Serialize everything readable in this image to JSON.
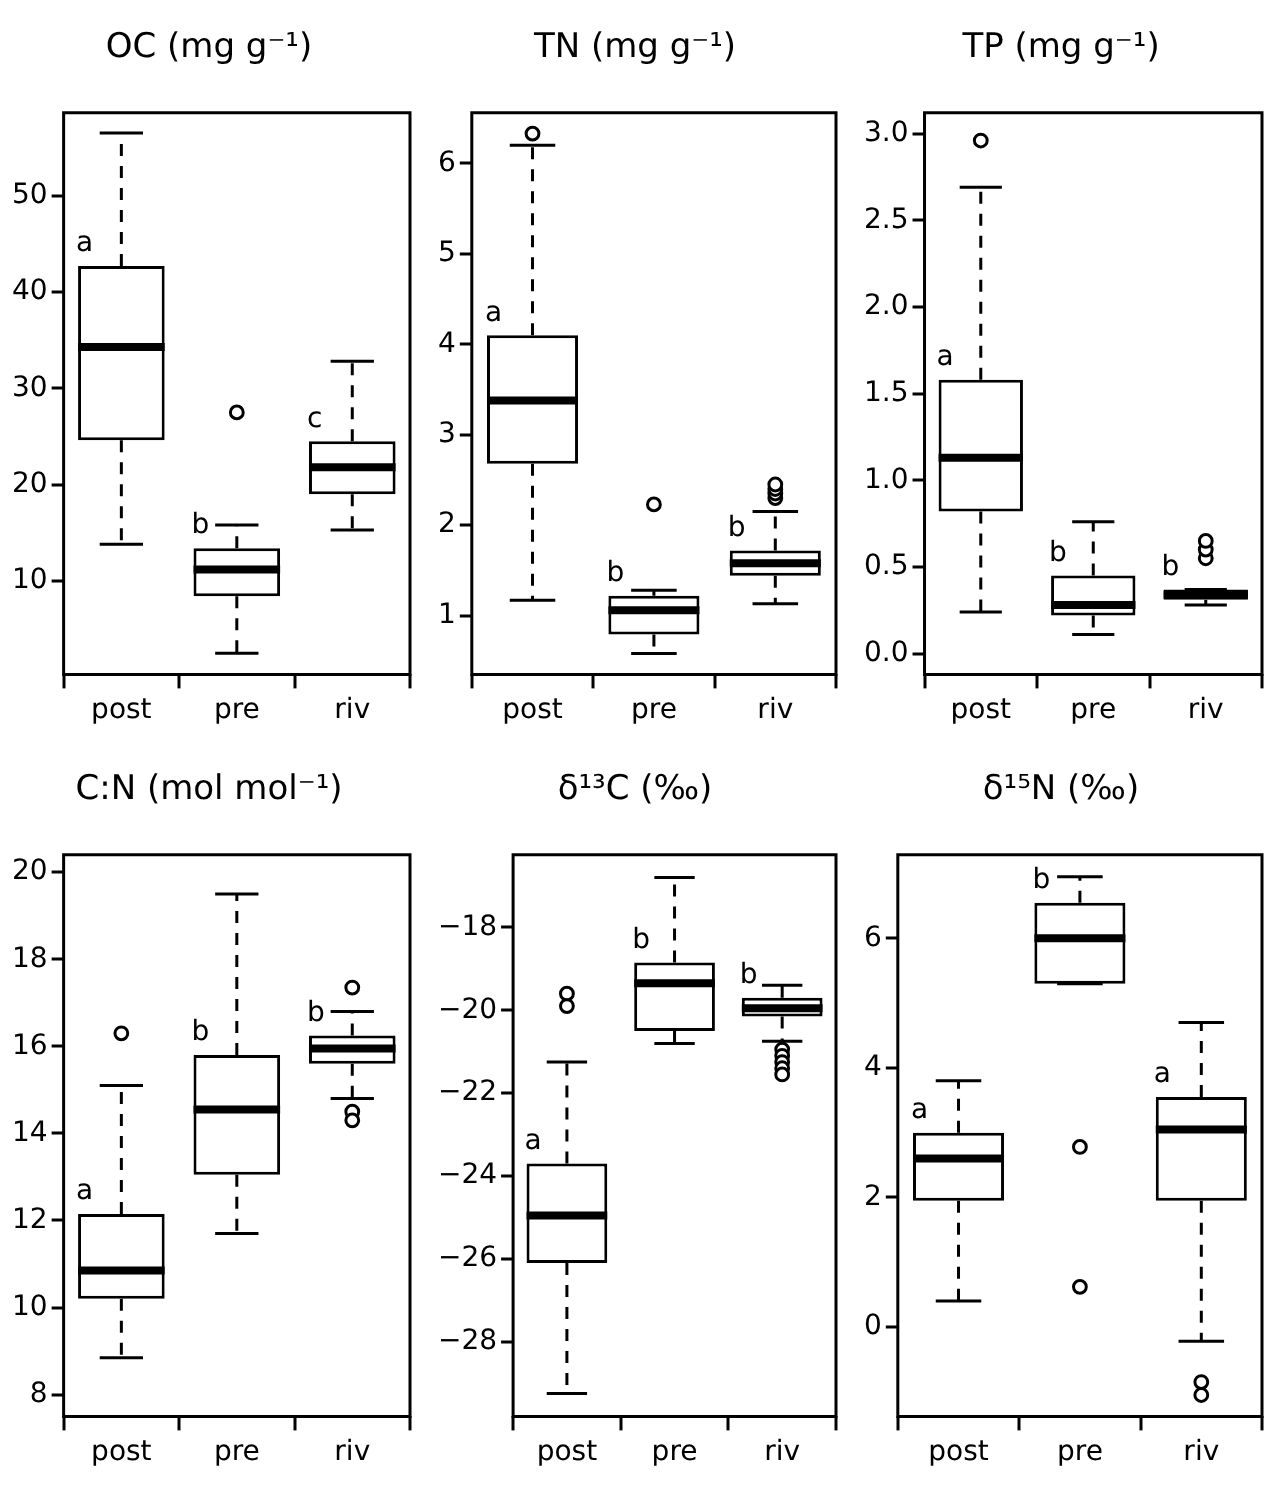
{
  "chart_data": [
    {
      "type": "box",
      "title": "OC (mg g⁻¹)",
      "categories": [
        "post",
        "pre",
        "riv"
      ],
      "ylim": [
        0.3,
        58.6
      ],
      "yticks": [
        10,
        20,
        30,
        40,
        50
      ],
      "grid": false,
      "boxes": [
        {
          "low": 13.8,
          "q1": 24.6,
          "median": 34.3,
          "q3": 42.7,
          "high": 56.5
        },
        {
          "low": 2.5,
          "q1": 8.4,
          "median": 11.2,
          "q3": 13.4,
          "high": 15.8,
          "outliers": [
            27.5
          ]
        },
        {
          "low": 15.3,
          "q1": 19,
          "median": 21.8,
          "q3": 24.5,
          "high": 32.8
        }
      ],
      "annotations": [
        "a",
        "b",
        "c"
      ]
    },
    {
      "type": "box",
      "title": "TN (mg g⁻¹)",
      "categories": [
        "post",
        "pre",
        "riv"
      ],
      "ylim": [
        0.35,
        6.56
      ],
      "yticks": [
        1,
        2,
        3,
        4,
        5,
        6
      ],
      "grid": false,
      "boxes": [
        {
          "low": 1.17,
          "q1": 2.68,
          "median": 3.38,
          "q3": 4.1,
          "high": 6.2,
          "outliers": [
            6.33
          ]
        },
        {
          "low": 0.58,
          "q1": 0.79,
          "median": 1.06,
          "q3": 1.22,
          "high": 1.28,
          "outliers": [
            2.23
          ]
        },
        {
          "low": 1.13,
          "q1": 1.44,
          "median": 1.58,
          "q3": 1.72,
          "high": 2.15,
          "outliers": [
            2.3,
            2.35,
            2.4,
            2.45
          ]
        }
      ],
      "annotations": [
        "a",
        "b",
        "b"
      ]
    },
    {
      "type": "box",
      "title": "TP (mg g⁻¹)",
      "categories": [
        "post",
        "pre",
        "riv"
      ],
      "ylim": [
        -0.12,
        3.12
      ],
      "yticks": [
        {
          "value": 0,
          "label": "0.0"
        },
        {
          "value": 0.5,
          "label": "0.5"
        },
        {
          "value": 1,
          "label": "1.0"
        },
        {
          "value": 1.5,
          "label": "1.5"
        },
        {
          "value": 2,
          "label": "2.0"
        },
        {
          "value": 2.5,
          "label": "2.5"
        },
        {
          "value": 3,
          "label": "3.0"
        }
      ],
      "grid": false,
      "boxes": [
        {
          "low": 0.24,
          "q1": 0.82,
          "median": 1.13,
          "q3": 1.58,
          "high": 2.69,
          "outliers": [
            2.96
          ]
        },
        {
          "low": 0.11,
          "q1": 0.22,
          "median": 0.28,
          "q3": 0.45,
          "high": 0.76
        },
        {
          "low": 0.28,
          "q1": 0.31,
          "median": 0.34,
          "q3": 0.37,
          "high": 0.37,
          "outliers": [
            0.55,
            0.6,
            0.65
          ]
        }
      ],
      "annotations": [
        "a",
        "b",
        "b"
      ]
    },
    {
      "type": "box",
      "title": "C:N (mol mol⁻¹)",
      "categories": [
        "post",
        "pre",
        "riv"
      ],
      "ylim": [
        7.5,
        20.4
      ],
      "yticks": [
        8,
        10,
        12,
        14,
        16,
        18,
        20
      ],
      "grid": false,
      "boxes": [
        {
          "low": 8.85,
          "q1": 10.2,
          "median": 10.85,
          "q3": 12.15,
          "high": 15.1,
          "outliers": [
            16.3
          ]
        },
        {
          "low": 11.7,
          "q1": 13.05,
          "median": 14.55,
          "q3": 15.8,
          "high": 19.5
        },
        {
          "low": 14.8,
          "q1": 15.6,
          "median": 15.95,
          "q3": 16.25,
          "high": 16.8,
          "outliers": [
            17.35,
            14.5,
            14.3
          ]
        }
      ],
      "annotations": [
        "a",
        "b",
        "b"
      ]
    },
    {
      "type": "box",
      "title": "δ¹³C (‰)",
      "categories": [
        "post",
        "pre",
        "riv"
      ],
      "ylim": [
        -29.8,
        -16.25
      ],
      "yticks": [
        -28,
        -26,
        -24,
        -22,
        -20,
        -18
      ],
      "grid": false,
      "boxes": [
        {
          "low": -29.25,
          "q1": -26.1,
          "median": -24.95,
          "q3": -23.7,
          "high": -21.25,
          "outliers": [
            -19.6,
            -19.9
          ]
        },
        {
          "low": -20.8,
          "q1": -20.5,
          "median": -19.35,
          "q3": -18.85,
          "high": -16.8
        },
        {
          "low": -20.75,
          "q1": -20.15,
          "median": -19.95,
          "q3": -19.7,
          "high": -19.4,
          "outliers": [
            -20.95,
            -21.1,
            -21.25,
            -21.4,
            -21.55
          ]
        }
      ],
      "annotations": [
        "a",
        "b",
        "b"
      ]
    },
    {
      "type": "box",
      "title": "δ¹⁵N (‰)",
      "categories": [
        "post",
        "pre",
        "riv"
      ],
      "ylim": [
        -1.38,
        7.29
      ],
      "yticks": [
        0,
        2,
        4,
        6
      ],
      "grid": false,
      "boxes": [
        {
          "low": 0.4,
          "q1": 1.95,
          "median": 2.6,
          "q3": 3.0,
          "high": 3.8
        },
        {
          "low": 5.3,
          "q1": 5.3,
          "median": 6.0,
          "q3": 6.55,
          "high": 6.95,
          "outliers": [
            2.78,
            0.62
          ]
        },
        {
          "low": -0.22,
          "q1": 1.95,
          "median": 3.05,
          "q3": 3.55,
          "high": 4.7,
          "outliers": [
            -0.85,
            -1.05
          ]
        }
      ],
      "annotations": [
        "a",
        "b",
        "a"
      ]
    }
  ]
}
